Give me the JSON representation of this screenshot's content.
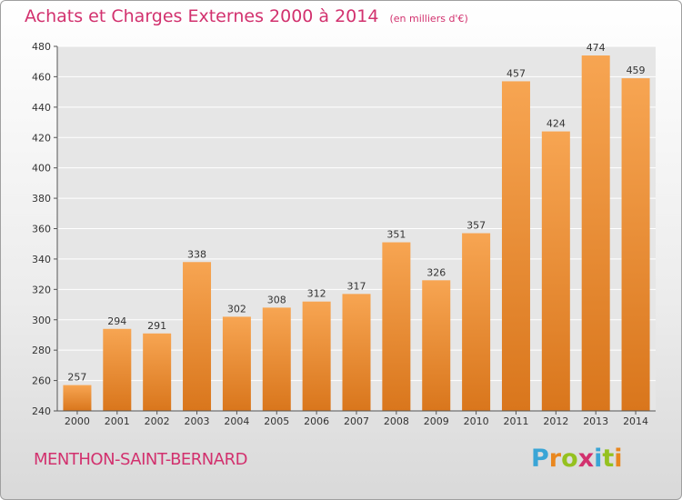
{
  "chart_data": {
    "type": "bar",
    "title": "Achats et Charges Externes 2000 à 2014",
    "subtitle": "(en milliers d'€)",
    "categories": [
      "2000",
      "2001",
      "2002",
      "2003",
      "2004",
      "2005",
      "2006",
      "2007",
      "2008",
      "2009",
      "2010",
      "2011",
      "2012",
      "2013",
      "2014"
    ],
    "values": [
      257,
      294,
      291,
      338,
      302,
      308,
      312,
      317,
      351,
      326,
      357,
      457,
      424,
      474,
      459
    ],
    "ylim": [
      240,
      480
    ],
    "yticks": [
      240,
      260,
      280,
      300,
      320,
      340,
      360,
      380,
      400,
      420,
      440,
      460,
      480
    ],
    "grid": true,
    "bar_color_top": "#f7a552",
    "bar_color_bottom": "#d9761c",
    "title_color": "#d2316e"
  },
  "town": "MENTHON-SAINT-BERNARD",
  "brand": {
    "text": "Proxiti",
    "letter_colors": [
      "#3aa5d6",
      "#e9871f",
      "#95c11f",
      "#d2316e",
      "#3aa5d6",
      "#95c11f",
      "#e9871f"
    ]
  }
}
